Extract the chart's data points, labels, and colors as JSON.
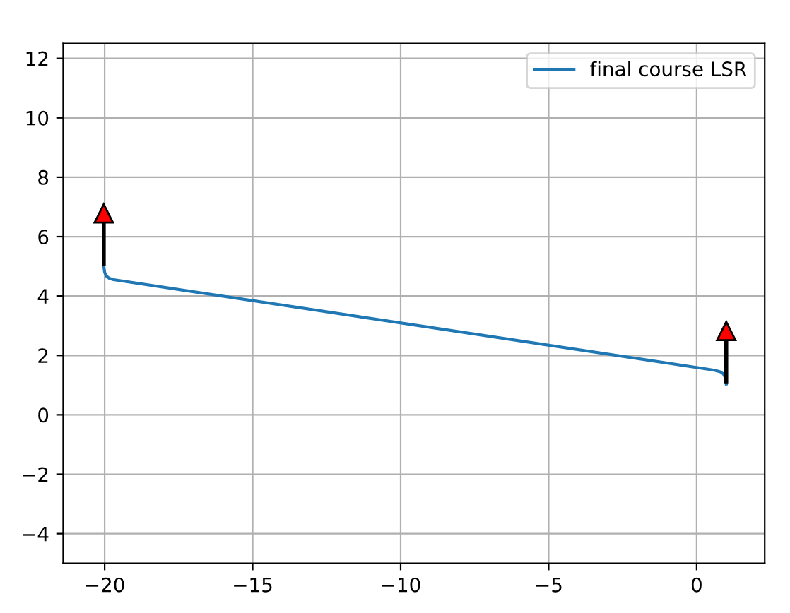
{
  "chart_data": {
    "type": "line",
    "xlim": [
      -21.4,
      2.3
    ],
    "ylim": [
      -5,
      12.5
    ],
    "xticks": [
      -20,
      -15,
      -10,
      -5,
      0
    ],
    "yticks": [
      -4,
      -2,
      0,
      2,
      4,
      6,
      8,
      10,
      12
    ],
    "grid": true,
    "legend": "top right",
    "series": [
      {
        "name": "final course LSR",
        "color": "#1f77b4",
        "x": [
          -20.03,
          -20.0,
          -19.95,
          -19.85,
          -19.7,
          0.3,
          0.6,
          0.8,
          0.9,
          0.97,
          1.0
        ],
        "values": [
          5.0,
          4.8,
          4.68,
          4.6,
          4.55,
          1.55,
          1.5,
          1.45,
          1.38,
          1.25,
          1.04
        ]
      }
    ]
  }
}
